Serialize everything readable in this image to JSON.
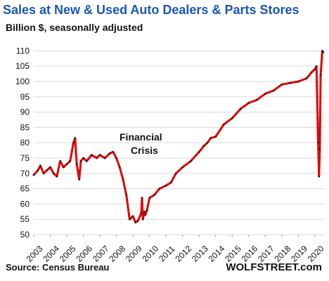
{
  "chart_data": {
    "type": "line",
    "title": "Sales at New & Used Auto Dealers & Parts Stores",
    "subtitle": "Billion $, seasonally adjusted",
    "source": "Source: Census Bureau",
    "brand": "WOLFSTREET.com",
    "annotation": "Financial\nCrisis",
    "xlabel": "",
    "ylabel": "",
    "x_ticks": [
      "2003",
      "2004",
      "2005",
      "2006",
      "2007",
      "2008",
      "2009",
      "2010",
      "2011",
      "2012",
      "2013",
      "2014",
      "2015",
      "2016",
      "2017",
      "2018",
      "2019",
      "2020"
    ],
    "y_ticks": [
      50,
      55,
      60,
      65,
      70,
      75,
      80,
      85,
      90,
      95,
      100,
      105,
      110
    ],
    "xlim": [
      2003.0,
      2020.6
    ],
    "ylim": [
      50,
      111
    ],
    "grid": "horizontal",
    "line_color": "#e00000",
    "marker_color": "#222222",
    "series": [
      {
        "x": [
          2003.0,
          2003.25,
          2003.4,
          2003.6,
          2003.8,
          2004.0,
          2004.2,
          2004.4,
          2004.6,
          2004.8,
          2005.0,
          2005.2,
          2005.4,
          2005.5,
          2005.6,
          2005.75,
          2005.85,
          2006.0,
          2006.2,
          2006.5,
          2006.8,
          2007.0,
          2007.3,
          2007.6,
          2007.8,
          2008.0,
          2008.2,
          2008.4,
          2008.6,
          2008.8,
          2009.0,
          2009.15,
          2009.3,
          2009.5,
          2009.55,
          2009.6,
          2009.7,
          2009.75,
          2009.85,
          2010.0,
          2010.3,
          2010.6,
          2011.0,
          2011.3,
          2011.6,
          2012.0,
          2012.5,
          2013.0,
          2013.3,
          2013.5,
          2013.7,
          2014.0,
          2014.5,
          2015.0,
          2015.5,
          2016.0,
          2016.5,
          2017.0,
          2017.5,
          2018.0,
          2018.5,
          2019.0,
          2019.5,
          2019.8,
          2020.0,
          2020.1,
          2020.2,
          2020.25,
          2020.3,
          2020.35,
          2020.45,
          2020.5
        ],
        "y": [
          69.5,
          71,
          72.5,
          70,
          71,
          72,
          70,
          69,
          74,
          72,
          73,
          74,
          80,
          81.5,
          73,
          68,
          74,
          75,
          74,
          76,
          75,
          76,
          75,
          76.5,
          77,
          75,
          72,
          68,
          63,
          55,
          56,
          54,
          54.5,
          57,
          62,
          55,
          57.5,
          56.5,
          58,
          62,
          63,
          65,
          66,
          67,
          70,
          72,
          74,
          77,
          79,
          80,
          81.5,
          82,
          86,
          88,
          91,
          93,
          94,
          96,
          97,
          99,
          99.5,
          100,
          101,
          103,
          104,
          105,
          80,
          69,
          78,
          102,
          110,
          109.5
        ]
      }
    ]
  }
}
